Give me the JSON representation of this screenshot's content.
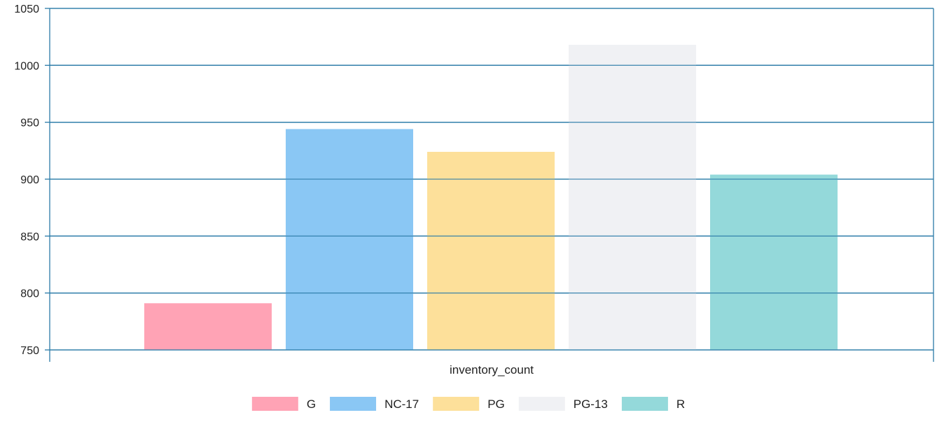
{
  "chart_data": {
    "type": "bar",
    "title": "",
    "xlabel": "inventory_count",
    "ylabel": "",
    "categories": [
      "inventory_count"
    ],
    "series": [
      {
        "name": "G",
        "values": [
          791
        ],
        "color": "#FFA3B5"
      },
      {
        "name": "NC-17",
        "values": [
          944
        ],
        "color": "#8AC7F4"
      },
      {
        "name": "PG",
        "values": [
          924
        ],
        "color": "#FDE09A"
      },
      {
        "name": "PG-13",
        "values": [
          1018
        ],
        "color": "#F0F1F4"
      },
      {
        "name": "R",
        "values": [
          904
        ],
        "color": "#94D9DA"
      }
    ],
    "ylim": [
      750,
      1050
    ],
    "yticks": [
      "750",
      "800",
      "850",
      "900",
      "950",
      "1000",
      "1050"
    ],
    "grid": true,
    "grid_color": "#2B7BA8",
    "legend_position": "bottom-center"
  }
}
